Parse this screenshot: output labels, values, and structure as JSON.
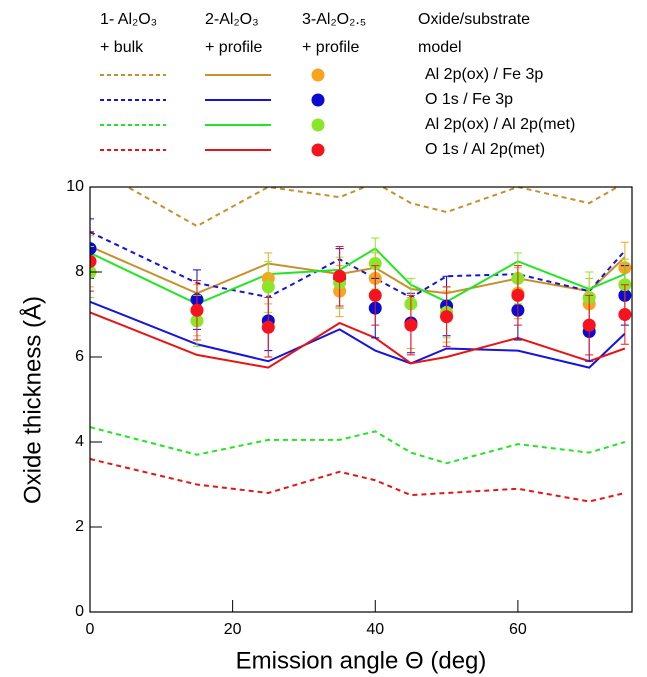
{
  "chart_data": {
    "type": "line",
    "xlabel": "Emission angle Θ (deg)",
    "ylabel": "Oxide thickness (Å)",
    "x": [
      0,
      15,
      25,
      35,
      40,
      45,
      50,
      60,
      70,
      75
    ],
    "xlim": [
      0,
      76
    ],
    "xticks": [
      0,
      20,
      40,
      60
    ],
    "ylim": [
      0,
      10
    ],
    "yticks": [
      0,
      2,
      4,
      6,
      8,
      10
    ],
    "legend_columns": [
      {
        "title": "1- Al₂O₃",
        "subtitle": "+ bulk"
      },
      {
        "title": "2-Al₂O₃",
        "subtitle": "+ profile"
      },
      {
        "title": "3-Al₂O₂.₅",
        "subtitle": "+ profile"
      },
      {
        "title": "Oxide/substrate",
        "subtitle": "model"
      }
    ],
    "model_styles": [
      "dashed",
      "solid",
      "points"
    ],
    "series": [
      {
        "name": "Al 2p(ox) / Fe 3p",
        "color": "#c8902a",
        "point_color": "#f7a520",
        "values": [
          [
            10.5,
            9.08,
            10.0,
            9.76,
            10.1,
            9.62,
            9.41,
            10.0,
            9.62,
            10.1
          ],
          [
            8.6,
            7.5,
            8.2,
            7.95,
            8.1,
            7.6,
            7.5,
            7.85,
            7.55,
            8.35
          ],
          [
            8.25,
            7.1,
            7.85,
            7.55,
            7.85,
            6.8,
            6.95,
            7.5,
            7.25,
            8.1
          ]
        ],
        "errors": [
          0.6,
          0.6,
          0.6,
          0.6,
          0.6,
          0.6,
          0.6,
          0.6,
          0.6,
          0.6
        ]
      },
      {
        "name": "O 1s / Fe 3p",
        "color": "#1414dc",
        "point_color": "#0a0ad2",
        "values": [
          [
            8.94,
            7.74,
            7.41,
            8.3,
            7.85,
            7.4,
            7.9,
            7.95,
            7.55,
            8.5
          ],
          [
            7.3,
            6.3,
            5.9,
            6.65,
            6.15,
            5.85,
            6.2,
            6.15,
            5.75,
            6.55
          ],
          [
            8.55,
            7.35,
            6.85,
            7.85,
            7.15,
            6.8,
            7.2,
            7.1,
            6.6,
            7.45
          ]
        ],
        "errors": [
          0.7,
          0.7,
          0.7,
          0.7,
          0.7,
          0.7,
          0.7,
          0.7,
          0.7,
          0.7
        ]
      },
      {
        "name": "Al 2p(ox) / Al 2p(met)",
        "color": "#22e622",
        "point_color": "#8ce628",
        "values": [
          [
            4.35,
            3.7,
            4.05,
            4.05,
            4.25,
            3.75,
            3.5,
            3.95,
            3.75,
            4.0
          ],
          [
            8.45,
            7.25,
            7.95,
            8.05,
            8.55,
            7.7,
            7.3,
            8.25,
            7.6,
            7.95
          ],
          [
            8.0,
            6.85,
            7.65,
            7.75,
            8.2,
            7.25,
            7.05,
            7.85,
            7.4,
            7.7
          ]
        ],
        "errors": [
          0.6,
          0.6,
          0.6,
          0.6,
          0.6,
          0.6,
          0.6,
          0.6,
          0.6,
          0.6
        ]
      },
      {
        "name": "O 1s / Al 2p(met)",
        "color": "#e61414",
        "point_color": "#f5141e",
        "values": [
          [
            3.6,
            3.0,
            2.8,
            3.3,
            3.1,
            2.75,
            2.8,
            2.9,
            2.6,
            2.8
          ],
          [
            7.05,
            6.05,
            5.75,
            6.8,
            6.45,
            5.85,
            6.0,
            6.45,
            5.9,
            6.2
          ],
          [
            8.25,
            7.1,
            6.7,
            7.9,
            7.45,
            6.75,
            6.95,
            7.45,
            6.75,
            7.0
          ]
        ],
        "errors": [
          0.7,
          0.7,
          0.7,
          0.7,
          0.7,
          0.7,
          0.7,
          0.7,
          0.7,
          0.7
        ]
      }
    ]
  }
}
